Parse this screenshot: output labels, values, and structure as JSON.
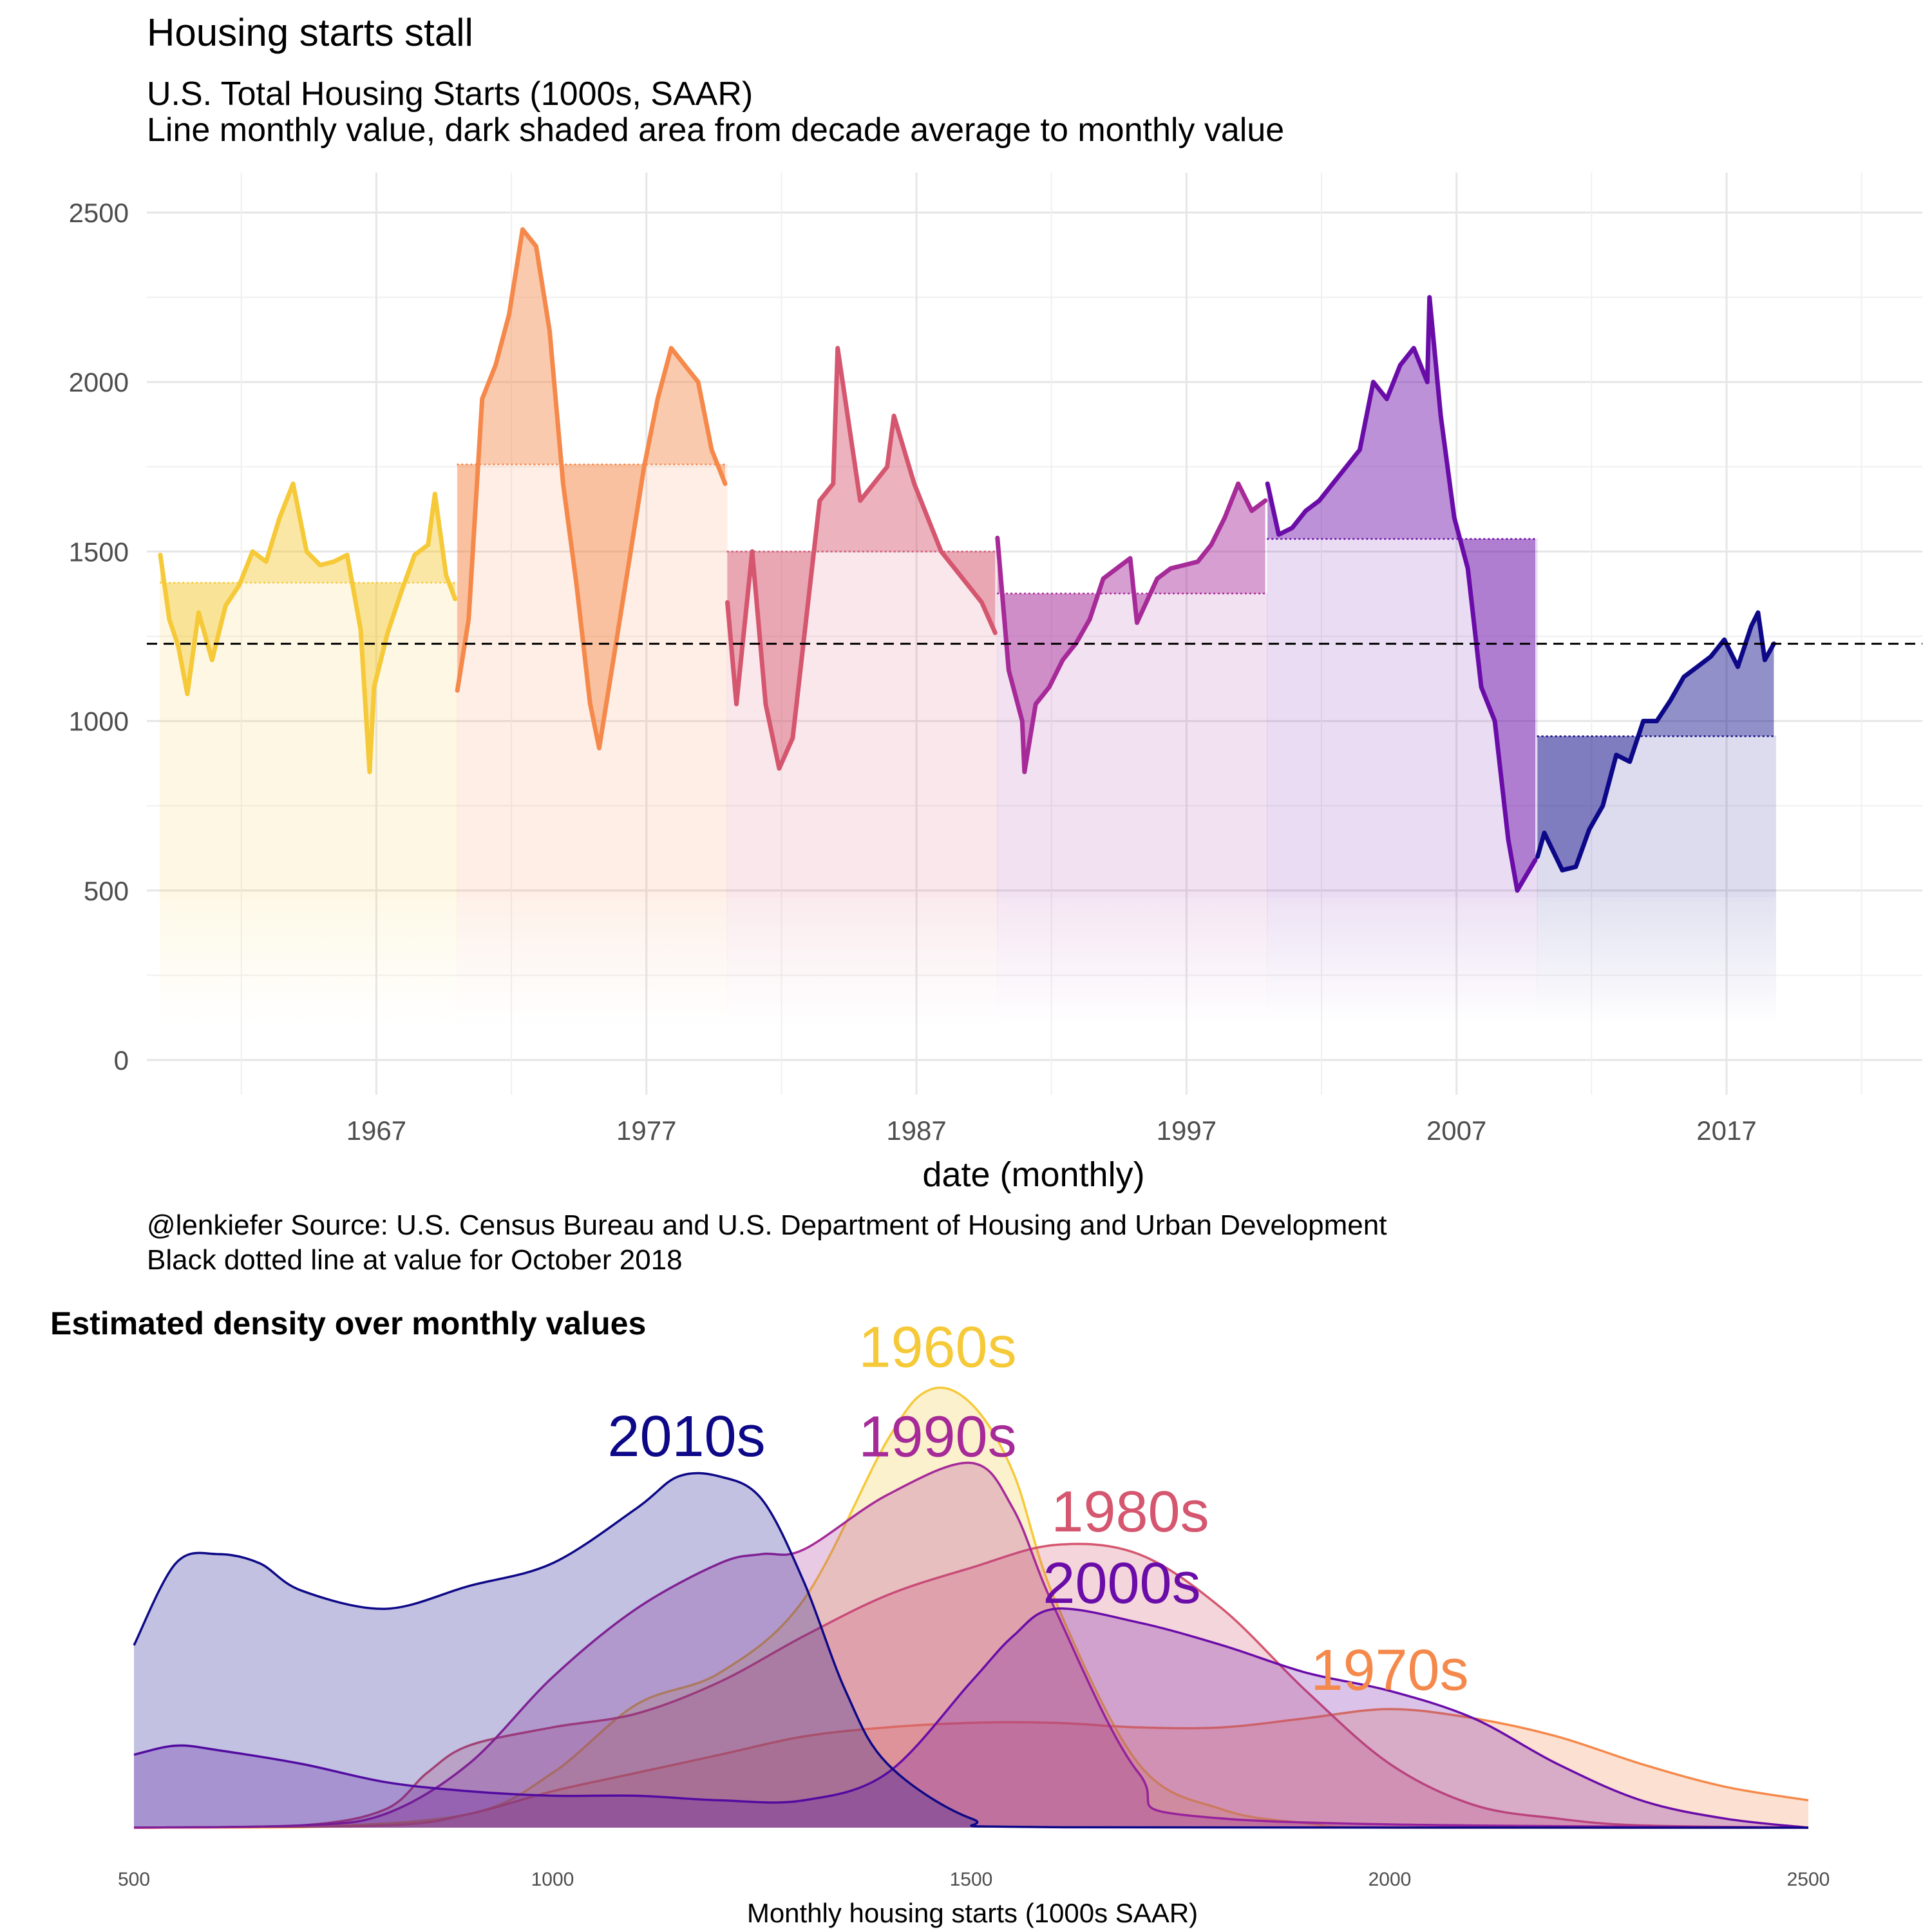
{
  "chart_data": [
    {
      "type": "line",
      "title": "Housing starts stall",
      "subtitle": [
        "U.S. Total Housing Starts (1000s, SAAR)",
        "Line monthly value, dark shaded area from decade average to monthly value"
      ],
      "xlabel": "date (monthly)",
      "ylabel": "",
      "caption": [
        "@lenkiefer Source: U.S. Census Bureau and U.S. Department of Housing and Urban Development",
        "Black dotted line at value for October 2018"
      ],
      "x_range": [
        "1959-01",
        "2018-10"
      ],
      "ylim": [
        0,
        2500
      ],
      "x_ticks": [
        "1967",
        "1977",
        "1987",
        "1997",
        "2007",
        "2017"
      ],
      "y_ticks": [
        "0",
        "500",
        "1000",
        "1500",
        "2000",
        "2500"
      ],
      "reference_line": {
        "label": "October 2018",
        "value": 1228,
        "style": "dashed"
      },
      "grid": true,
      "series": [
        {
          "decade": "1960s",
          "color": "#F5C938",
          "start": "1959-01",
          "end": "1969-12",
          "decade_average": 1408,
          "points": [
            [
              "1959-01",
              1490
            ],
            [
              "1959-05",
              1300
            ],
            [
              "1959-09",
              1220
            ],
            [
              "1960-01",
              1080
            ],
            [
              "1960-06",
              1320
            ],
            [
              "1960-12",
              1180
            ],
            [
              "1961-06",
              1340
            ],
            [
              "1961-12",
              1400
            ],
            [
              "1962-06",
              1500
            ],
            [
              "1962-12",
              1470
            ],
            [
              "1963-06",
              1600
            ],
            [
              "1963-12",
              1700
            ],
            [
              "1964-06",
              1500
            ],
            [
              "1964-12",
              1460
            ],
            [
              "1965-06",
              1470
            ],
            [
              "1965-12",
              1490
            ],
            [
              "1966-06",
              1270
            ],
            [
              "1966-10",
              850
            ],
            [
              "1966-12",
              1100
            ],
            [
              "1967-06",
              1260
            ],
            [
              "1967-12",
              1380
            ],
            [
              "1968-06",
              1490
            ],
            [
              "1968-12",
              1520
            ],
            [
              "1969-03",
              1670
            ],
            [
              "1969-08",
              1430
            ],
            [
              "1969-12",
              1360
            ]
          ]
        },
        {
          "decade": "1970s",
          "color": "#F5894B",
          "start": "1970-01",
          "end": "1979-12",
          "decade_average": 1757,
          "points": [
            [
              "1970-01",
              1090
            ],
            [
              "1970-06",
              1300
            ],
            [
              "1970-12",
              1950
            ],
            [
              "1971-06",
              2050
            ],
            [
              "1971-12",
              2200
            ],
            [
              "1972-06",
              2450
            ],
            [
              "1972-12",
              2400
            ],
            [
              "1973-06",
              2150
            ],
            [
              "1973-12",
              1700
            ],
            [
              "1974-06",
              1400
            ],
            [
              "1974-12",
              1050
            ],
            [
              "1975-04",
              920
            ],
            [
              "1975-12",
              1250
            ],
            [
              "1976-06",
              1500
            ],
            [
              "1976-12",
              1750
            ],
            [
              "1977-06",
              1950
            ],
            [
              "1977-12",
              2100
            ],
            [
              "1978-06",
              2050
            ],
            [
              "1978-12",
              2000
            ],
            [
              "1979-06",
              1800
            ],
            [
              "1979-12",
              1700
            ]
          ]
        },
        {
          "decade": "1980s",
          "color": "#D5566F",
          "start": "1980-01",
          "end": "1989-12",
          "decade_average": 1500,
          "points": [
            [
              "1980-01",
              1350
            ],
            [
              "1980-05",
              1050
            ],
            [
              "1980-12",
              1500
            ],
            [
              "1981-06",
              1050
            ],
            [
              "1981-12",
              860
            ],
            [
              "1982-06",
              950
            ],
            [
              "1982-12",
              1300
            ],
            [
              "1983-06",
              1650
            ],
            [
              "1983-12",
              1700
            ],
            [
              "1984-02",
              2100
            ],
            [
              "1984-12",
              1650
            ],
            [
              "1985-06",
              1700
            ],
            [
              "1985-12",
              1750
            ],
            [
              "1986-03",
              1900
            ],
            [
              "1986-12",
              1700
            ],
            [
              "1987-06",
              1600
            ],
            [
              "1987-12",
              1500
            ],
            [
              "1988-06",
              1450
            ],
            [
              "1988-12",
              1400
            ],
            [
              "1989-06",
              1350
            ],
            [
              "1989-12",
              1260
            ]
          ]
        },
        {
          "decade": "1990s",
          "color": "#A62A98",
          "start": "1990-01",
          "end": "1999-12",
          "decade_average": 1376,
          "points": [
            [
              "1990-01",
              1540
            ],
            [
              "1990-06",
              1150
            ],
            [
              "1990-12",
              1000
            ],
            [
              "1991-01",
              850
            ],
            [
              "1991-06",
              1050
            ],
            [
              "1991-12",
              1100
            ],
            [
              "1992-06",
              1180
            ],
            [
              "1992-12",
              1230
            ],
            [
              "1993-06",
              1300
            ],
            [
              "1993-12",
              1420
            ],
            [
              "1994-06",
              1450
            ],
            [
              "1994-12",
              1480
            ],
            [
              "1995-03",
              1290
            ],
            [
              "1995-12",
              1420
            ],
            [
              "1996-06",
              1450
            ],
            [
              "1996-12",
              1460
            ],
            [
              "1997-06",
              1470
            ],
            [
              "1997-12",
              1520
            ],
            [
              "1998-06",
              1600
            ],
            [
              "1998-12",
              1700
            ],
            [
              "1999-06",
              1620
            ],
            [
              "1999-12",
              1650
            ]
          ]
        },
        {
          "decade": "2000s",
          "color": "#6A0CA8",
          "start": "2000-01",
          "end": "2009-12",
          "decade_average": 1537,
          "points": [
            [
              "2000-01",
              1700
            ],
            [
              "2000-06",
              1550
            ],
            [
              "2000-12",
              1570
            ],
            [
              "2001-06",
              1620
            ],
            [
              "2001-12",
              1650
            ],
            [
              "2002-06",
              1700
            ],
            [
              "2002-12",
              1750
            ],
            [
              "2003-06",
              1800
            ],
            [
              "2003-12",
              2000
            ],
            [
              "2004-06",
              1950
            ],
            [
              "2004-12",
              2050
            ],
            [
              "2005-06",
              2100
            ],
            [
              "2005-12",
              2000
            ],
            [
              "2006-01",
              2250
            ],
            [
              "2006-06",
              1900
            ],
            [
              "2006-12",
              1600
            ],
            [
              "2007-06",
              1450
            ],
            [
              "2007-12",
              1100
            ],
            [
              "2008-06",
              1000
            ],
            [
              "2008-12",
              650
            ],
            [
              "2009-04",
              500
            ],
            [
              "2009-12",
              590
            ]
          ]
        },
        {
          "decade": "2010s",
          "color": "#0D0887",
          "start": "2010-01",
          "end": "2018-10",
          "decade_average": 955,
          "points": [
            [
              "2010-01",
              600
            ],
            [
              "2010-04",
              670
            ],
            [
              "2010-12",
              560
            ],
            [
              "2011-06",
              570
            ],
            [
              "2011-12",
              680
            ],
            [
              "2012-06",
              750
            ],
            [
              "2012-12",
              900
            ],
            [
              "2013-06",
              880
            ],
            [
              "2013-12",
              1000
            ],
            [
              "2014-06",
              1000
            ],
            [
              "2014-12",
              1060
            ],
            [
              "2015-06",
              1130
            ],
            [
              "2015-12",
              1160
            ],
            [
              "2016-06",
              1190
            ],
            [
              "2016-12",
              1240
            ],
            [
              "2017-06",
              1160
            ],
            [
              "2017-12",
              1280
            ],
            [
              "2018-03",
              1320
            ],
            [
              "2018-06",
              1180
            ],
            [
              "2018-10",
              1228
            ]
          ]
        }
      ]
    },
    {
      "type": "area",
      "title": "Estimated density over monthly values",
      "xlabel": "Monthly housing starts (1000s SAAR)",
      "ylabel": "",
      "xlim": [
        500,
        2500
      ],
      "x_ticks": [
        "500",
        "1000",
        "1500",
        "2000",
        "2500"
      ],
      "grid": false,
      "series": [
        {
          "name": "1960s",
          "color": "#F5C938",
          "label_at": 1460,
          "x": [
            500,
            700,
            900,
            1000,
            1100,
            1200,
            1300,
            1400,
            1450,
            1500,
            1550,
            1600,
            1700,
            1800,
            1900,
            2000,
            2500
          ],
          "density": [
            0,
            0.001,
            0.03,
            0.12,
            0.27,
            0.34,
            0.5,
            0.85,
            0.96,
            0.93,
            0.78,
            0.5,
            0.14,
            0.04,
            0.01,
            0,
            0
          ]
        },
        {
          "name": "1970s",
          "color": "#F5894B",
          "label_at": 2000,
          "x": [
            500,
            800,
            900,
            1000,
            1100,
            1200,
            1300,
            1400,
            1500,
            1600,
            1700,
            1800,
            1900,
            2000,
            2100,
            2200,
            2300,
            2400,
            2500
          ],
          "density": [
            0,
            0.005,
            0.03,
            0.08,
            0.12,
            0.16,
            0.2,
            0.22,
            0.23,
            0.23,
            0.22,
            0.22,
            0.24,
            0.26,
            0.24,
            0.2,
            0.14,
            0.09,
            0.06
          ]
        },
        {
          "name": "1980s",
          "color": "#D5566F",
          "label_at": 1690,
          "x": [
            500,
            700,
            800,
            850,
            900,
            1000,
            1100,
            1200,
            1300,
            1400,
            1500,
            1600,
            1700,
            1800,
            1900,
            2000,
            2100,
            2200,
            2300,
            2500
          ],
          "density": [
            0,
            0.005,
            0.04,
            0.12,
            0.18,
            0.22,
            0.25,
            0.32,
            0.42,
            0.51,
            0.57,
            0.62,
            0.6,
            0.48,
            0.3,
            0.14,
            0.05,
            0.02,
            0.005,
            0
          ]
        },
        {
          "name": "1990s",
          "color": "#A62A98",
          "label_at": 1460,
          "x": [
            500,
            700,
            800,
            900,
            1000,
            1100,
            1200,
            1250,
            1300,
            1400,
            1500,
            1550,
            1600,
            1700,
            1800,
            2500
          ],
          "density": [
            0,
            0.005,
            0.03,
            0.14,
            0.33,
            0.48,
            0.58,
            0.6,
            0.61,
            0.73,
            0.8,
            0.7,
            0.48,
            0.12,
            0.02,
            0
          ]
        },
        {
          "name": "2000s",
          "color": "#6A0CA8",
          "label_at": 1680,
          "x": [
            500,
            550,
            600,
            700,
            800,
            900,
            1000,
            1100,
            1200,
            1300,
            1400,
            1500,
            1550,
            1600,
            1700,
            1800,
            1900,
            2000,
            2100,
            2200,
            2300,
            2400,
            2500
          ],
          "density": [
            0.16,
            0.18,
            0.17,
            0.14,
            0.1,
            0.08,
            0.07,
            0.07,
            0.06,
            0.06,
            0.12,
            0.32,
            0.42,
            0.48,
            0.45,
            0.4,
            0.34,
            0.3,
            0.24,
            0.14,
            0.06,
            0.02,
            0
          ]
        },
        {
          "name": "2010s",
          "color": "#0D0887",
          "label_at": 1160,
          "x": [
            500,
            550,
            600,
            650,
            700,
            800,
            900,
            1000,
            1100,
            1150,
            1200,
            1250,
            1300,
            1350,
            1400,
            1500,
            1600,
            2500
          ],
          "density": [
            0.4,
            0.58,
            0.6,
            0.58,
            0.52,
            0.48,
            0.53,
            0.58,
            0.7,
            0.77,
            0.77,
            0.72,
            0.54,
            0.3,
            0.14,
            0.02,
            0.001,
            0
          ]
        }
      ]
    }
  ]
}
